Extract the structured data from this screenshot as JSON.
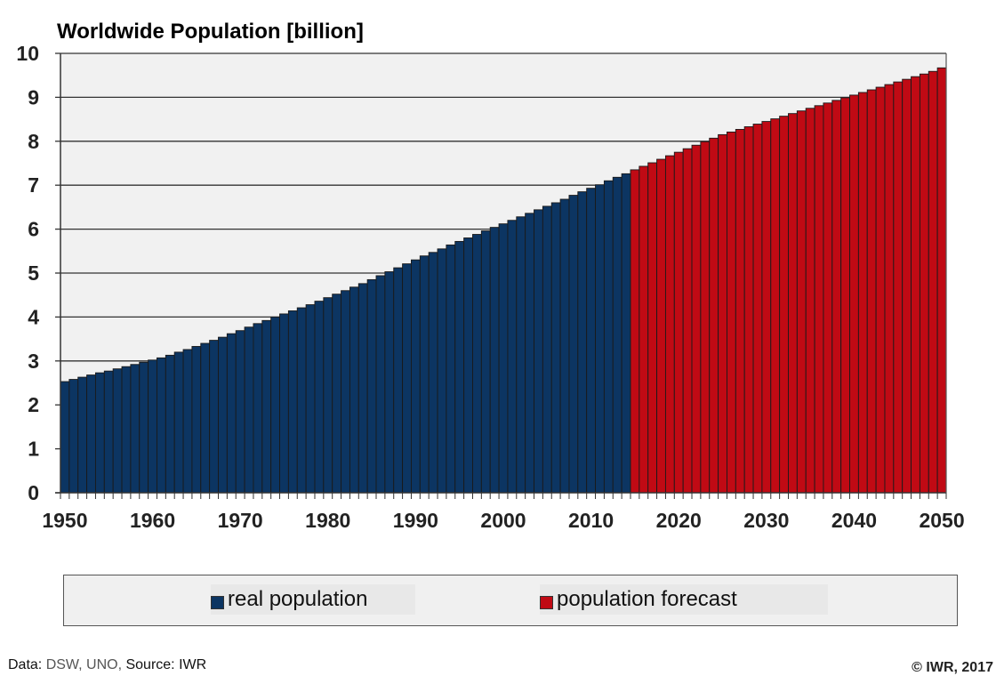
{
  "chart_data": {
    "type": "bar",
    "title": "Worldwide Population [billion]",
    "xlabel": "",
    "ylabel": "",
    "ylim": [
      0,
      10
    ],
    "xlim": [
      1950,
      2050
    ],
    "y_ticks": [
      "0",
      "1",
      "2",
      "3",
      "4",
      "5",
      "6",
      "7",
      "8",
      "9",
      "10"
    ],
    "x_ticks": [
      "1950",
      "1960",
      "1970",
      "1980",
      "1990",
      "2000",
      "2010",
      "2020",
      "2030",
      "2040",
      "2050"
    ],
    "grid": true,
    "legend_position": "bottom",
    "series": [
      {
        "name": "real population",
        "color": "#0c3562",
        "x": [
          1950,
          1951,
          1952,
          1953,
          1954,
          1955,
          1956,
          1957,
          1958,
          1959,
          1960,
          1961,
          1962,
          1963,
          1964,
          1965,
          1966,
          1967,
          1968,
          1969,
          1970,
          1971,
          1972,
          1973,
          1974,
          1975,
          1976,
          1977,
          1978,
          1979,
          1980,
          1981,
          1982,
          1983,
          1984,
          1985,
          1986,
          1987,
          1988,
          1989,
          1990,
          1991,
          1992,
          1993,
          1994,
          1995,
          1996,
          1997,
          1998,
          1999,
          2000,
          2001,
          2002,
          2003,
          2004,
          2005,
          2006,
          2007,
          2008,
          2009,
          2010,
          2011,
          2012,
          2013,
          2014
        ],
        "values": [
          2.53,
          2.58,
          2.63,
          2.68,
          2.73,
          2.77,
          2.82,
          2.87,
          2.92,
          2.97,
          3.02,
          3.07,
          3.13,
          3.2,
          3.26,
          3.33,
          3.4,
          3.47,
          3.54,
          3.62,
          3.69,
          3.77,
          3.85,
          3.92,
          4.0,
          4.07,
          4.14,
          4.21,
          4.28,
          4.36,
          4.44,
          4.52,
          4.6,
          4.68,
          4.76,
          4.85,
          4.94,
          5.03,
          5.12,
          5.21,
          5.3,
          5.39,
          5.47,
          5.55,
          5.64,
          5.72,
          5.8,
          5.88,
          5.96,
          6.04,
          6.12,
          6.2,
          6.28,
          6.36,
          6.44,
          6.52,
          6.6,
          6.68,
          6.77,
          6.85,
          6.93,
          7.01,
          7.1,
          7.18,
          7.26
        ]
      },
      {
        "name": "population forecast",
        "color": "#c00a14",
        "x": [
          2015,
          2016,
          2017,
          2018,
          2019,
          2020,
          2021,
          2022,
          2023,
          2024,
          2025,
          2026,
          2027,
          2028,
          2029,
          2030,
          2031,
          2032,
          2033,
          2034,
          2035,
          2036,
          2037,
          2038,
          2039,
          2040,
          2041,
          2042,
          2043,
          2044,
          2045,
          2046,
          2047,
          2048,
          2049,
          2050
        ],
        "values": [
          7.35,
          7.43,
          7.51,
          7.59,
          7.67,
          7.75,
          7.83,
          7.91,
          7.99,
          8.07,
          8.15,
          8.21,
          8.27,
          8.33,
          8.39,
          8.45,
          8.51,
          8.57,
          8.63,
          8.69,
          8.75,
          8.81,
          8.87,
          8.93,
          8.99,
          9.05,
          9.11,
          9.17,
          9.23,
          9.29,
          9.35,
          9.41,
          9.47,
          9.53,
          9.59,
          9.67
        ]
      }
    ]
  },
  "legend": {
    "items": [
      {
        "label": "real population",
        "color": "#0c3562"
      },
      {
        "label": "population forecast",
        "color": "#c00a14"
      }
    ]
  },
  "footer": {
    "data_prefix": "Data: ",
    "data_sources": "DSW, UNO,",
    "source_text": " Source: IWR",
    "copyright": "© IWR, 2017"
  }
}
